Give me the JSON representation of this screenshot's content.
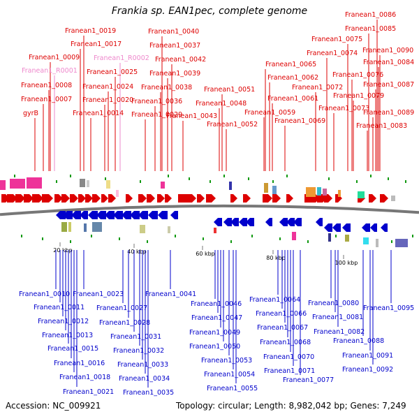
{
  "title": "Frankia sp. EAN1pec, complete genome",
  "accession": "Accession: NC_009921",
  "topology": "Topology: circular; Length: 8,982,042 bp; Genes: 7,249",
  "ticks": [
    "20 kbp",
    "40 kbp",
    "60 kbp",
    "80 kbp",
    "100 kbp"
  ],
  "top_labels": [
    {
      "text": "Franean1_0019",
      "color": "#dd0000"
    },
    {
      "text": "Franean1_0017",
      "color": "#dd0000"
    },
    {
      "text": "Franean1_0009",
      "color": "#dd0000"
    },
    {
      "text": "Franean1_R0001",
      "color": "#ee88cc"
    },
    {
      "text": "Franean1_0008",
      "color": "#dd0000"
    },
    {
      "text": "Franean1_0007",
      "color": "#dd0000"
    },
    {
      "text": "gyrB",
      "color": "#dd0000"
    },
    {
      "text": "Franean1_0040",
      "color": "#dd0000"
    },
    {
      "text": "Franean1_0037",
      "color": "#dd0000"
    },
    {
      "text": "Franean1_R0002",
      "color": "#ee88cc"
    },
    {
      "text": "Franean1_0042",
      "color": "#dd0000"
    },
    {
      "text": "Franean1_0025",
      "color": "#dd0000"
    },
    {
      "text": "Franean1_0039",
      "color": "#dd0000"
    },
    {
      "text": "Franean1_0024",
      "color": "#dd0000"
    },
    {
      "text": "Franean1_0038",
      "color": "#dd0000"
    },
    {
      "text": "Franean1_0020",
      "color": "#dd0000"
    },
    {
      "text": "Franean1_0036",
      "color": "#dd0000"
    },
    {
      "text": "Franean1_0014",
      "color": "#dd0000"
    },
    {
      "text": "Franean1_0029",
      "color": "#dd0000"
    },
    {
      "text": "Franean1_0043",
      "color": "#dd0000"
    },
    {
      "text": "Franean1_0051",
      "color": "#dd0000"
    },
    {
      "text": "Franean1_0048",
      "color": "#dd0000"
    },
    {
      "text": "Franean1_0052",
      "color": "#dd0000"
    },
    {
      "text": "Franean1_0065",
      "color": "#dd0000"
    },
    {
      "text": "Franean1_0062",
      "color": "#dd0000"
    },
    {
      "text": "Franean1_0061",
      "color": "#dd0000"
    },
    {
      "text": "Franean1_0059",
      "color": "#dd0000"
    },
    {
      "text": "Franean1_0069",
      "color": "#dd0000"
    },
    {
      "text": "Franean1_0086",
      "color": "#dd0000"
    },
    {
      "text": "Franean1_0085",
      "color": "#dd0000"
    },
    {
      "text": "Franean1_0075",
      "color": "#dd0000"
    },
    {
      "text": "Franean1_0090",
      "color": "#dd0000"
    },
    {
      "text": "Franean1_0074",
      "color": "#dd0000"
    },
    {
      "text": "Franean1_0084",
      "color": "#dd0000"
    },
    {
      "text": "Franean1_0076",
      "color": "#dd0000"
    },
    {
      "text": "Franean1_0072",
      "color": "#dd0000"
    },
    {
      "text": "Franean1_0087",
      "color": "#dd0000"
    },
    {
      "text": "Franean1_0079",
      "color": "#dd0000"
    },
    {
      "text": "Franean1_0073",
      "color": "#dd0000"
    },
    {
      "text": "Franean1_0089",
      "color": "#dd0000"
    },
    {
      "text": "Franean1_0083",
      "color": "#dd0000"
    }
  ],
  "bottom_labels": [
    "Franean1_0010",
    "Franean1_0011",
    "Franean1_0012",
    "Franean1_0013",
    "Franean1_0015",
    "Franean1_0016",
    "Franean1_0018",
    "Franean1_0021",
    "Franean1_0023",
    "Franean1_0027",
    "Franean1_0028",
    "Franean1_0031",
    "Franean1_0032",
    "Franean1_0033",
    "Franean1_0034",
    "Franean1_0035",
    "Franean1_0041",
    "Franean1_0046",
    "Franean1_0047",
    "Franean1_0049",
    "Franean1_0050",
    "Franean1_0053",
    "Franean1_0054",
    "Franean1_0055",
    "Franean1_0064",
    "Franean1_0066",
    "Franean1_0067",
    "Franean1_0068",
    "Franean1_0070",
    "Franean1_0071",
    "Franean1_0077",
    "Franean1_0080",
    "Franean1_0081",
    "Franean1_0082",
    "Franean1_0088",
    "Franean1_0091",
    "Franean1_0092",
    "Franean1_0095"
  ],
  "colors": {
    "forward_gene": "#dd0000",
    "reverse_gene": "#0000cc",
    "rna_gene": "#ee88cc",
    "backbone": "#777777",
    "orf_marker": "#119911"
  }
}
